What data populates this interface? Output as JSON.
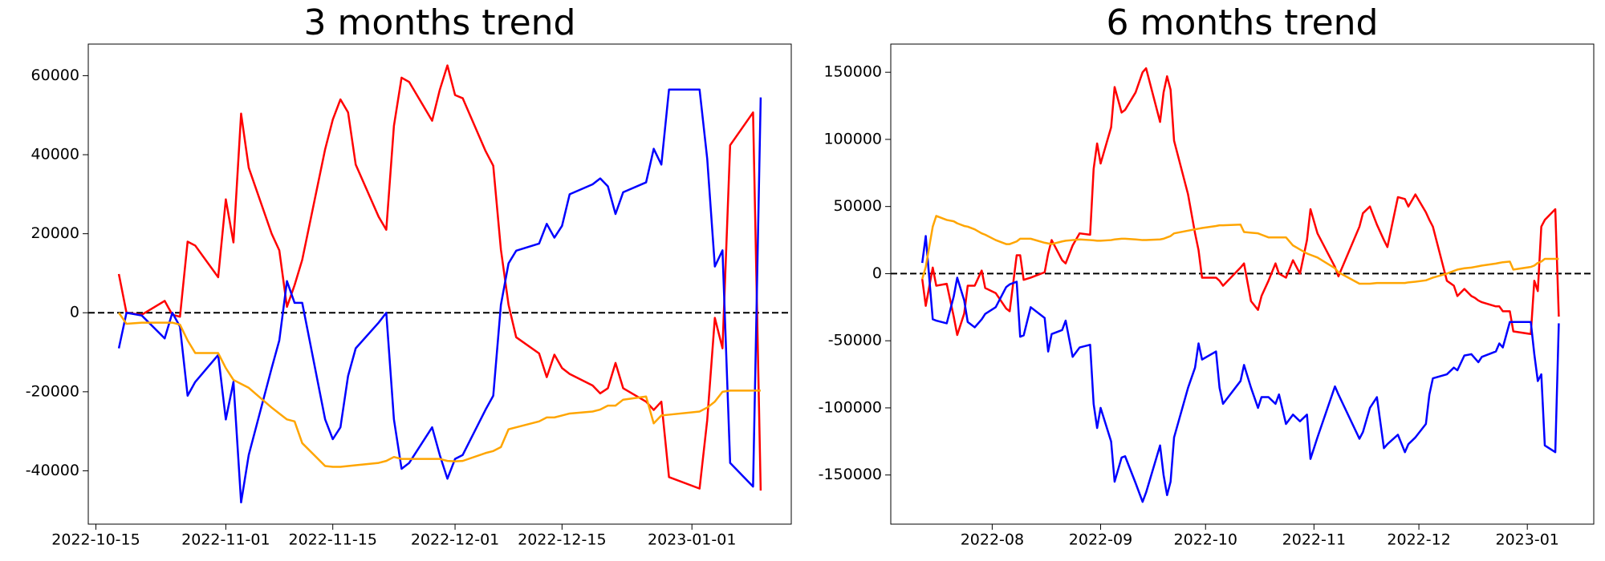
{
  "chart_data": [
    {
      "type": "line",
      "title": "3 months trend",
      "x": [
        "2022-10-18",
        "2022-10-19",
        "2022-10-21",
        "2022-10-24",
        "2022-10-25",
        "2022-10-26",
        "2022-10-27",
        "2022-10-28",
        "2022-10-31",
        "2022-11-01",
        "2022-11-02",
        "2022-11-03",
        "2022-11-04",
        "2022-11-07",
        "2022-11-08",
        "2022-11-09",
        "2022-11-10",
        "2022-11-11",
        "2022-11-14",
        "2022-11-15",
        "2022-11-16",
        "2022-11-17",
        "2022-11-18",
        "2022-11-21",
        "2022-11-22",
        "2022-11-23",
        "2022-11-24",
        "2022-11-25",
        "2022-11-28",
        "2022-11-29",
        "2022-11-30",
        "2022-12-01",
        "2022-12-02",
        "2022-12-05",
        "2022-12-06",
        "2022-12-07",
        "2022-12-08",
        "2022-12-09",
        "2022-12-12",
        "2022-12-13",
        "2022-12-14",
        "2022-12-15",
        "2022-12-16",
        "2022-12-19",
        "2022-12-20",
        "2022-12-21",
        "2022-12-22",
        "2022-12-23",
        "2022-12-26",
        "2022-12-27",
        "2022-12-28",
        "2022-12-29",
        "2023-01-02",
        "2023-01-03",
        "2023-01-04",
        "2023-01-05",
        "2023-01-06",
        "2023-01-09",
        "2023-01-10"
      ],
      "series": [
        {
          "color": "#ff0000",
          "values": [
            9800,
            0,
            -500,
            3000,
            -500,
            -1000,
            18000,
            17000,
            9000,
            28700,
            17800,
            50400,
            36700,
            20000,
            15800,
            1500,
            7000,
            13400,
            41400,
            48900,
            54000,
            50700,
            37500,
            24300,
            21000,
            47300,
            59500,
            58400,
            48600,
            56400,
            62600,
            55100,
            54300,
            40900,
            37200,
            16000,
            2000,
            -6200,
            -10300,
            -16300,
            -10600,
            -14000,
            -15500,
            -18400,
            -20400,
            -19100,
            -12700,
            -19100,
            -22500,
            -24600,
            -22500,
            -41600,
            -44500,
            -27200,
            -1300,
            -9000,
            42400,
            50700,
            -45000
          ]
        },
        {
          "color": "#0000ff",
          "values": [
            -9000,
            0,
            -700,
            -6500,
            0,
            -3500,
            -21000,
            -17500,
            -10700,
            -27000,
            -17500,
            -48000,
            -36000,
            -14000,
            -7000,
            8000,
            2500,
            2500,
            -27000,
            -32000,
            -29000,
            -16000,
            -9000,
            -2500,
            0,
            -27000,
            -39500,
            -38000,
            -29000,
            -36000,
            -42000,
            -37000,
            -36000,
            -24500,
            -21000,
            2000,
            12500,
            15700,
            17500,
            22500,
            19000,
            22000,
            30000,
            32500,
            34000,
            32000,
            25000,
            30500,
            33000,
            41500,
            37500,
            56500,
            56500,
            39000,
            11700,
            15800,
            -38000,
            -44000,
            54500
          ]
        },
        {
          "color": "#ffa500",
          "values": [
            0,
            -2800,
            -2500,
            -2500,
            -2500,
            -3000,
            -7000,
            -10200,
            -10200,
            -14000,
            -17000,
            -18000,
            -19000,
            -24000,
            -25500,
            -27000,
            -27500,
            -33000,
            -38800,
            -39000,
            -39000,
            -38800,
            -38600,
            -38000,
            -37500,
            -36500,
            -37000,
            -37000,
            -37000,
            -37000,
            -37500,
            -37600,
            -37500,
            -35500,
            -35000,
            -34000,
            -29500,
            -29000,
            -27500,
            -26500,
            -26500,
            -26000,
            -25500,
            -25000,
            -24500,
            -23500,
            -23500,
            -22000,
            -21200,
            -28000,
            -26000,
            -25800,
            -25000,
            -24000,
            -22500,
            -20000,
            -19700,
            -19700,
            -19700
          ]
        }
      ],
      "xlim": [
        "2022-10-14",
        "2023-01-14"
      ],
      "xticks": [
        "2022-10-15",
        "2022-11-01",
        "2022-11-15",
        "2022-12-01",
        "2022-12-15",
        "2023-01-01"
      ],
      "ylim": [
        -53500,
        68000
      ],
      "yticks": [
        -40000,
        -20000,
        0,
        20000,
        40000,
        60000
      ],
      "hline": 0
    },
    {
      "type": "line",
      "title": "6 months trend",
      "x": [
        "2022-07-12",
        "2022-07-13",
        "2022-07-15",
        "2022-07-16",
        "2022-07-19",
        "2022-07-21",
        "2022-07-22",
        "2022-07-24",
        "2022-07-25",
        "2022-07-27",
        "2022-07-29",
        "2022-07-30",
        "2022-08-02",
        "2022-08-05",
        "2022-08-06",
        "2022-08-08",
        "2022-08-09",
        "2022-08-10",
        "2022-08-12",
        "2022-08-16",
        "2022-08-17",
        "2022-08-18",
        "2022-08-21",
        "2022-08-22",
        "2022-08-24",
        "2022-08-26",
        "2022-08-29",
        "2022-08-30",
        "2022-08-31",
        "2022-09-01",
        "2022-09-04",
        "2022-09-05",
        "2022-09-07",
        "2022-09-08",
        "2022-09-11",
        "2022-09-13",
        "2022-09-14",
        "2022-09-18",
        "2022-09-19",
        "2022-09-20",
        "2022-09-21",
        "2022-09-22",
        "2022-09-26",
        "2022-09-28",
        "2022-09-29",
        "2022-09-30",
        "2022-10-04",
        "2022-10-05",
        "2022-10-06",
        "2022-10-11",
        "2022-10-12",
        "2022-10-14",
        "2022-10-16",
        "2022-10-17",
        "2022-10-19",
        "2022-10-21",
        "2022-10-22",
        "2022-10-24",
        "2022-10-26",
        "2022-10-28",
        "2022-10-30",
        "2022-10-31",
        "2022-11-02",
        "2022-11-07",
        "2022-11-08",
        "2022-11-14",
        "2022-11-15",
        "2022-11-17",
        "2022-11-19",
        "2022-11-21",
        "2022-11-22",
        "2022-11-25",
        "2022-11-27",
        "2022-11-28",
        "2022-11-30",
        "2022-12-03",
        "2022-12-04",
        "2022-12-05",
        "2022-12-09",
        "2022-12-11",
        "2022-12-12",
        "2022-12-14",
        "2022-12-16",
        "2022-12-17",
        "2022-12-18",
        "2022-12-19",
        "2022-12-23",
        "2022-12-24",
        "2022-12-25",
        "2022-12-27",
        "2022-12-28",
        "2023-01-02",
        "2023-01-03",
        "2023-01-04",
        "2023-01-05",
        "2023-01-06",
        "2023-01-09",
        "2023-01-10"
      ],
      "series": [
        {
          "color": "#ff0000",
          "values": [
            -4000,
            -24000,
            4500,
            -9000,
            -7600,
            -32000,
            -45700,
            -29700,
            -9000,
            -9000,
            2300,
            -10700,
            -14500,
            -26000,
            -28000,
            13700,
            13700,
            -4600,
            -3000,
            1000,
            15000,
            25000,
            10000,
            7600,
            21000,
            30000,
            29000,
            78000,
            97000,
            82000,
            109000,
            139000,
            120000,
            122000,
            135000,
            150000,
            153000,
            113000,
            135000,
            147000,
            137000,
            99000,
            59000,
            30000,
            17500,
            -3000,
            -3000,
            -5300,
            -9000,
            4500,
            7600,
            -20500,
            -27000,
            -16700,
            -5300,
            7600,
            0,
            -3000,
            10000,
            0,
            25000,
            48000,
            30000,
            5000,
            -2000,
            35000,
            45000,
            50000,
            36500,
            25000,
            19800,
            57000,
            55600,
            50000,
            59000,
            45700,
            40000,
            35000,
            -5300,
            -9000,
            -16700,
            -11400,
            -16700,
            -18000,
            -20000,
            -21300,
            -24400,
            -24400,
            -28000,
            -28000,
            -43000,
            -45000,
            -5300,
            -13000,
            35000,
            40000,
            48000,
            -32000
          ]
        },
        {
          "color": "#0000ff",
          "values": [
            8000,
            28000,
            -34000,
            -35000,
            -37000,
            -17000,
            -3000,
            -20000,
            -36000,
            -40000,
            -34000,
            -30000,
            -25000,
            -10000,
            -8000,
            -6000,
            -47000,
            -46000,
            -25000,
            -33000,
            -58000,
            -45000,
            -42000,
            -35000,
            -62000,
            -55000,
            -53000,
            -97000,
            -115000,
            -100000,
            -125000,
            -155000,
            -137000,
            -136000,
            -156000,
            -170000,
            -163000,
            -128000,
            -150000,
            -165000,
            -155000,
            -122000,
            -85000,
            -70000,
            -52000,
            -64000,
            -58000,
            -85000,
            -97000,
            -80000,
            -68000,
            -85000,
            -100000,
            -92000,
            -92000,
            -97000,
            -90000,
            -112000,
            -105000,
            -110000,
            -105000,
            -138000,
            -122000,
            -84000,
            -90000,
            -123000,
            -118000,
            -100000,
            -92000,
            -130000,
            -127000,
            -120000,
            -133000,
            -127000,
            -122000,
            -112000,
            -90000,
            -78000,
            -75000,
            -70000,
            -72000,
            -61000,
            -60000,
            -63000,
            -66000,
            -62000,
            -58000,
            -52000,
            -55000,
            -36000,
            -36000,
            -36000,
            -60000,
            -80000,
            -75000,
            -128000,
            -133000,
            -37000
          ]
        },
        {
          "color": "#ffa500",
          "values": [
            -4000,
            5000,
            35000,
            43000,
            40000,
            39000,
            37500,
            35500,
            35000,
            33000,
            30000,
            29000,
            25000,
            22000,
            22000,
            24000,
            26000,
            26000,
            26000,
            23000,
            22500,
            22000,
            24000,
            24500,
            25000,
            25500,
            25000,
            24800,
            24500,
            24500,
            25000,
            25500,
            26000,
            26000,
            25500,
            25000,
            25000,
            25500,
            26000,
            27000,
            28000,
            30000,
            32000,
            33000,
            33500,
            34000,
            35500,
            36000,
            36000,
            36500,
            31000,
            30500,
            30000,
            29000,
            27000,
            27000,
            27000,
            27000,
            21000,
            18000,
            15000,
            14000,
            12000,
            4000,
            1000,
            -7500,
            -7500,
            -7500,
            -7000,
            -7000,
            -7000,
            -7000,
            -7000,
            -6500,
            -6000,
            -5000,
            -4000,
            -3000,
            0,
            2000,
            3000,
            4000,
            4500,
            5000,
            5500,
            6000,
            7500,
            8000,
            8500,
            9000,
            3000,
            5000,
            6000,
            8000,
            9000,
            11000,
            11000,
            11000
          ]
        }
      ],
      "xlim": [
        "2022-07-03",
        "2023-01-20"
      ],
      "xticks": [
        {
          "value": "2022-08-01",
          "label": "2022-08"
        },
        {
          "value": "2022-09-01",
          "label": "2022-09"
        },
        {
          "value": "2022-10-01",
          "label": "2022-10"
        },
        {
          "value": "2022-11-01",
          "label": "2022-11"
        },
        {
          "value": "2022-12-01",
          "label": "2022-12"
        },
        {
          "value": "2023-01-01",
          "label": "2023-01"
        }
      ],
      "ylim": [
        -186600,
        171000
      ],
      "yticks": [
        -150000,
        -100000,
        -50000,
        0,
        50000,
        100000,
        150000
      ],
      "hline": 0
    }
  ]
}
